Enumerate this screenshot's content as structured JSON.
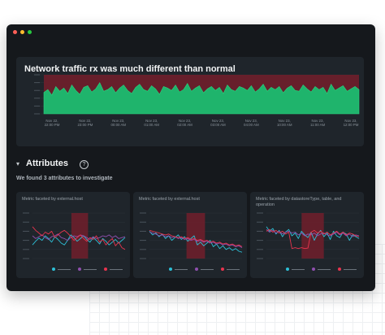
{
  "window": {
    "controls": [
      "close",
      "minimize",
      "zoom"
    ]
  },
  "main_panel": {
    "title": "Network traffic rx was much different than normal",
    "x_ticks": [
      [
        "Nov 22,",
        "22:00 PM"
      ],
      [
        "Nov 22,",
        "23:00 PM"
      ],
      [
        "Nov 23,",
        "00:00 AM"
      ],
      [
        "Nov 23,",
        "01:00 AM"
      ],
      [
        "Nov 23,",
        "02:00 AM"
      ],
      [
        "Nov 23,",
        "03:00 AM"
      ],
      [
        "Nov 23,",
        "04:00 AM"
      ],
      [
        "Nov 23,",
        "10:00 AM"
      ],
      [
        "Nov 23,",
        "11:00 AM"
      ],
      [
        "Nov 23,",
        "12:00 PM"
      ]
    ]
  },
  "attributes": {
    "title": "Attributes",
    "subtitle": "We found 3 attributes to investigate"
  },
  "panels": [
    {
      "title": "Metric faceted by external.host"
    },
    {
      "title": "Metric faceted by external.host"
    },
    {
      "title": "Metric faceted by datastoreType, table, and operation"
    }
  ],
  "legend_colors": [
    "#2dbfd6",
    "#8e4fae",
    "#e8344e"
  ],
  "chart_data": [
    {
      "type": "area",
      "series": [
        {
          "values": [
            55,
            62,
            48,
            70,
            58,
            66,
            52,
            74,
            60,
            50,
            68,
            72,
            56,
            64,
            80,
            58,
            62,
            70,
            54,
            66,
            74,
            60,
            52,
            68,
            76,
            62,
            58,
            72,
            64,
            50,
            70,
            66,
            60,
            74,
            56,
            62,
            78,
            58,
            66,
            72,
            54,
            64,
            70,
            60,
            68,
            52,
            74,
            62,
            58,
            70,
            66,
            60,
            72,
            56,
            64,
            76,
            58,
            68,
            62,
            70,
            54,
            66,
            72,
            60,
            58,
            74,
            64,
            56,
            70,
            62,
            68,
            52,
            76,
            60,
            66,
            72,
            58,
            64,
            70,
            62
          ]
        }
      ],
      "anomaly_band": [
        0.5,
        1
      ],
      "colors": {
        "area": "#1fb46c",
        "band": "#6b1f2b"
      }
    },
    {
      "type": "line",
      "series": [
        {
          "values": [
            30,
            38,
            45,
            40,
            50,
            44,
            36,
            48,
            42,
            34,
            30,
            40,
            52,
            46,
            38,
            44,
            50,
            42,
            36,
            46,
            40,
            32,
            44,
            38,
            30,
            36,
            42,
            34,
            40,
            46
          ]
        },
        {
          "values": [
            50,
            44,
            48,
            52,
            46,
            42,
            48,
            50,
            54,
            46,
            44,
            40,
            46,
            50,
            48,
            52,
            50,
            46,
            42,
            48,
            44,
            46,
            50,
            48,
            52,
            46,
            50,
            44,
            46,
            48
          ]
        },
        {
          "values": [
            70,
            62,
            56,
            50,
            58,
            54,
            60,
            46,
            52,
            58,
            62,
            56,
            48,
            40,
            46,
            52,
            44,
            38,
            46,
            42,
            50,
            36,
            42,
            30,
            38,
            44,
            28,
            36,
            24,
            20
          ]
        }
      ],
      "anomaly_band": [
        0.42,
        0.6
      ],
      "colors": {
        "band": "#6b1f2b"
      }
    },
    {
      "type": "line",
      "series": [
        {
          "values": [
            60,
            52,
            56,
            48,
            54,
            44,
            50,
            40,
            46,
            52,
            42,
            48,
            38,
            44,
            50,
            30,
            36,
            28,
            34,
            40,
            26,
            32,
            22,
            28,
            20,
            24,
            18,
            22,
            16,
            14
          ]
        },
        {
          "values": [
            58,
            56,
            54,
            50,
            52,
            48,
            50,
            46,
            48,
            44,
            46,
            42,
            44,
            40,
            42,
            38,
            40,
            36,
            38,
            34,
            36,
            32,
            34,
            30,
            32,
            28,
            30,
            26,
            28,
            24
          ]
        },
        {
          "values": [
            62,
            60,
            58,
            56,
            54,
            52,
            54,
            50,
            48,
            46,
            48,
            44,
            46,
            42,
            44,
            40,
            42,
            38,
            40,
            36,
            38,
            34,
            36,
            32,
            34,
            30,
            32,
            28,
            30,
            26
          ]
        }
      ],
      "anomaly_band": [
        0.4,
        0.6
      ],
      "colors": {
        "band": "#6b1f2b"
      }
    },
    {
      "type": "line",
      "series": [
        {
          "values": [
            70,
            60,
            66,
            54,
            62,
            48,
            58,
            64,
            50,
            56,
            44,
            60,
            52,
            46,
            58,
            40,
            54,
            62,
            48,
            56,
            42,
            60,
            50,
            46,
            58,
            54,
            40,
            52,
            48,
            44
          ]
        },
        {
          "values": [
            64,
            58,
            62,
            56,
            60,
            54,
            58,
            60,
            56,
            58,
            52,
            56,
            50,
            54,
            52,
            56,
            50,
            54,
            56,
            52,
            50,
            54,
            58,
            52,
            56,
            50,
            54,
            48,
            52,
            50
          ]
        },
        {
          "values": [
            60,
            64,
            58,
            62,
            56,
            60,
            54,
            58,
            22,
            24,
            22,
            24,
            22,
            23,
            58,
            62,
            56,
            60,
            54,
            58,
            52,
            56,
            60,
            54,
            58,
            52,
            56,
            54,
            50,
            48
          ]
        }
      ],
      "anomaly_band": [
        0.38,
        0.62
      ],
      "colors": {
        "band": "#6b1f2b"
      }
    }
  ]
}
